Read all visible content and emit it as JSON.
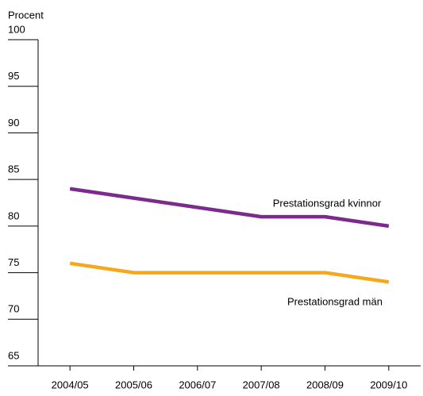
{
  "chart_data": {
    "type": "line",
    "y_label": "Procent",
    "categories": [
      "2004/05",
      "2005/06",
      "2006/07",
      "2007/08",
      "2008/09",
      "2009/10"
    ],
    "series": [
      {
        "name": "Prestationsgrad kvinnor",
        "color": "#7b2b8c",
        "values": [
          84,
          83,
          82,
          81,
          81,
          80
        ]
      },
      {
        "name": "Prestationsgrad män",
        "color": "#f6a81c",
        "values": [
          76,
          75,
          75,
          75,
          75,
          74
        ]
      }
    ],
    "ylim": [
      65,
      100
    ],
    "yticks": [
      65,
      70,
      75,
      80,
      85,
      90,
      95,
      100
    ],
    "grid": false
  }
}
